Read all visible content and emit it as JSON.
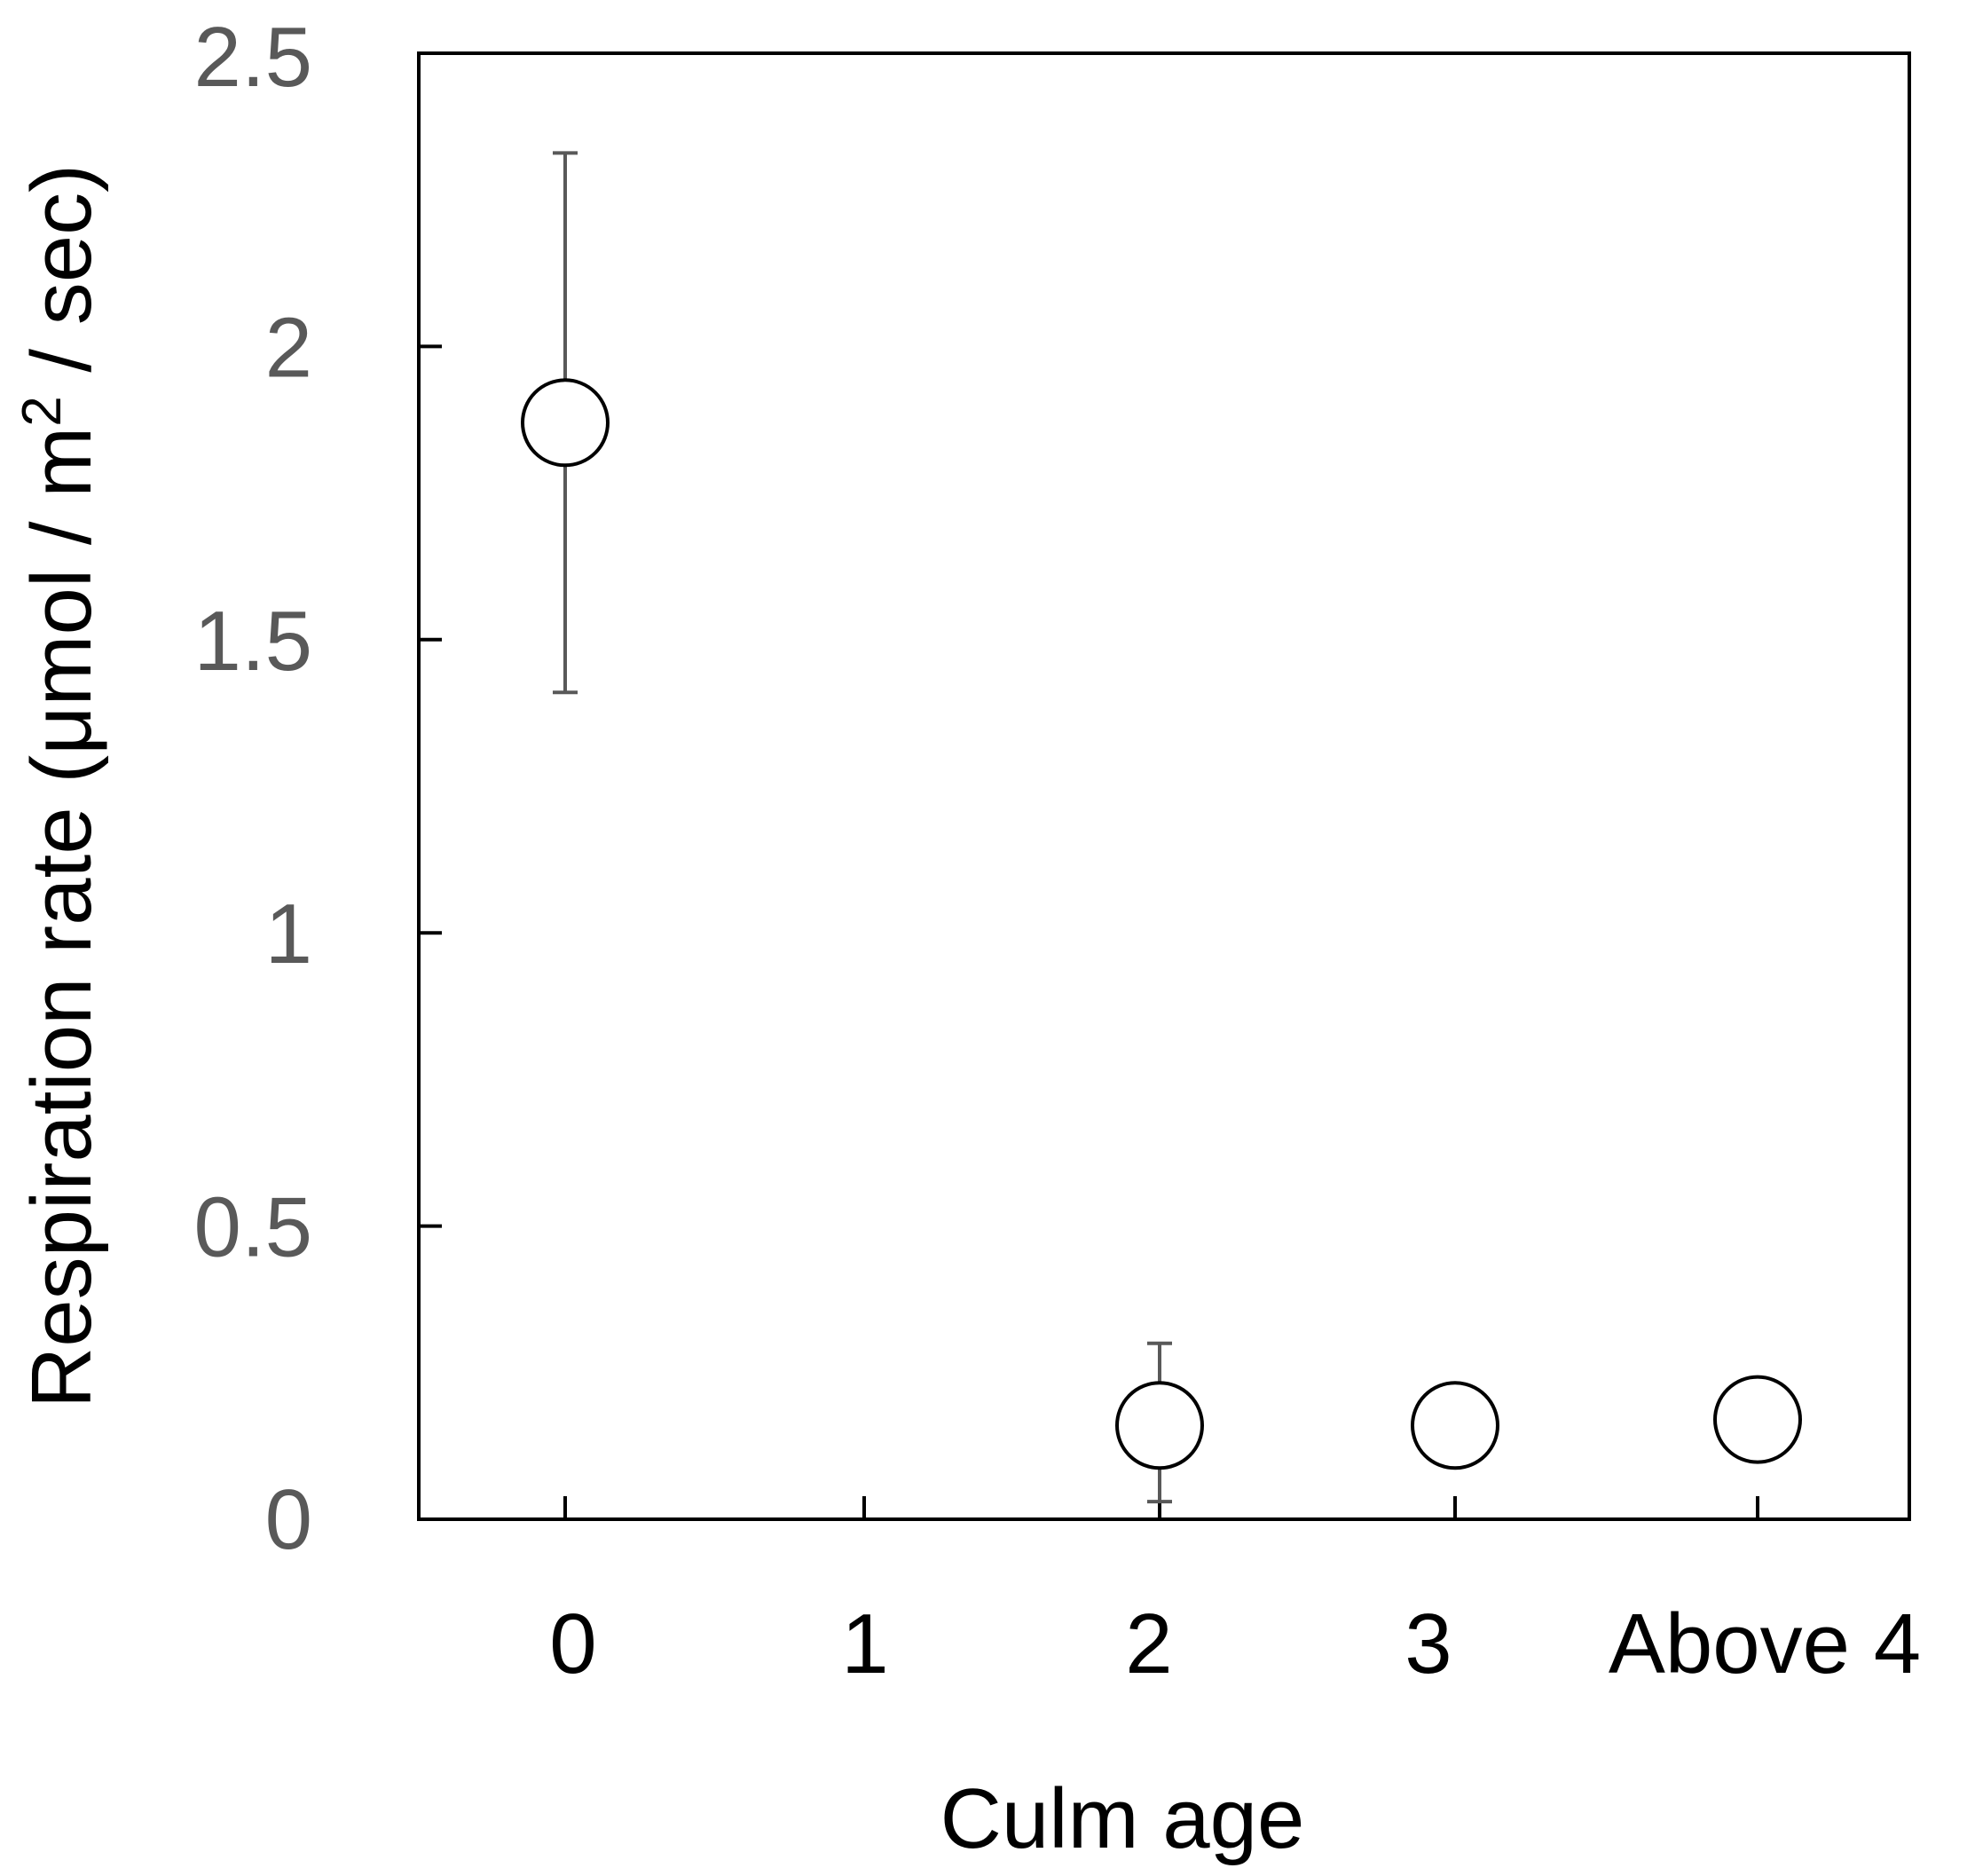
{
  "chart_data": {
    "type": "scatter",
    "xlabel": "Culm age",
    "ylabel": "Respiration rate (μmol / m² / sec)",
    "ylabel_parts": {
      "before": "Respiration rate (μmol / m",
      "sup": "2",
      "after": " / sec)"
    },
    "categories": [
      "0",
      "1",
      "2",
      "3",
      "Above 4"
    ],
    "yticks": [
      "0",
      "0.5",
      "1",
      "1.5",
      "2",
      "2.5"
    ],
    "ylim": [
      0,
      2.5
    ],
    "grid": false,
    "series": [
      {
        "points": [
          {
            "x": "0",
            "y": 1.87,
            "err_low": 1.41,
            "err_high": 2.33
          },
          {
            "x": "2",
            "y": 0.16,
            "err_low": 0.03,
            "err_high": 0.3
          },
          {
            "x": "3",
            "y": 0.16
          },
          {
            "x": "Above 4",
            "y": 0.17
          }
        ]
      }
    ],
    "colors": {
      "marker_stroke": "#000000",
      "error_bar": "#595959",
      "axis": "#000000",
      "y_tick_text": "#595959"
    }
  }
}
